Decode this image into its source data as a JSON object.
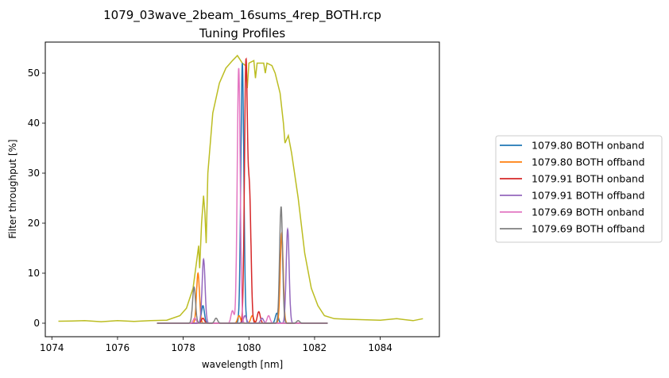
{
  "chart_data": {
    "type": "line",
    "title": "1079_03wave_2beam_16sums_4rep_BOTH.rcp",
    "subtitle": "Tuning Profiles",
    "xlabel": "wavelength [nm]",
    "ylabel": "Filter throughput [%]",
    "xlim": [
      1073.8,
      1085.8
    ],
    "ylim": [
      -2.7,
      56.2
    ],
    "xticks": [
      1074,
      1076,
      1078,
      1080,
      1082,
      1084
    ],
    "yticks": [
      0,
      10,
      20,
      30,
      40,
      50
    ],
    "grid": false,
    "legend_position": "right",
    "prefilter": {
      "color": "#bcbd22",
      "points": [
        [
          1074.2,
          0.4
        ],
        [
          1074.6,
          0.45
        ],
        [
          1075.0,
          0.5
        ],
        [
          1075.5,
          0.3
        ],
        [
          1076.0,
          0.5
        ],
        [
          1076.5,
          0.35
        ],
        [
          1077.0,
          0.5
        ],
        [
          1077.5,
          0.6
        ],
        [
          1077.9,
          1.5
        ],
        [
          1078.1,
          3
        ],
        [
          1078.3,
          7
        ],
        [
          1078.42,
          13
        ],
        [
          1078.47,
          15.5
        ],
        [
          1078.5,
          11
        ],
        [
          1078.56,
          20
        ],
        [
          1078.62,
          25.5
        ],
        [
          1078.66,
          22
        ],
        [
          1078.7,
          16
        ],
        [
          1078.75,
          30
        ],
        [
          1078.9,
          42
        ],
        [
          1079.1,
          48
        ],
        [
          1079.3,
          51
        ],
        [
          1079.5,
          52.5
        ],
        [
          1079.65,
          53.5
        ],
        [
          1079.7,
          53
        ],
        [
          1079.8,
          52
        ],
        [
          1079.9,
          51.5
        ],
        [
          1079.95,
          47
        ],
        [
          1080.0,
          52
        ],
        [
          1080.15,
          52.5
        ],
        [
          1080.2,
          49
        ],
        [
          1080.25,
          52
        ],
        [
          1080.45,
          52
        ],
        [
          1080.5,
          50
        ],
        [
          1080.55,
          52
        ],
        [
          1080.7,
          51.5
        ],
        [
          1080.8,
          50
        ],
        [
          1080.95,
          46
        ],
        [
          1081.05,
          40
        ],
        [
          1081.1,
          36
        ],
        [
          1081.2,
          37.5
        ],
        [
          1081.3,
          34
        ],
        [
          1081.5,
          25
        ],
        [
          1081.7,
          14
        ],
        [
          1081.9,
          7
        ],
        [
          1082.1,
          3.5
        ],
        [
          1082.3,
          1.5
        ],
        [
          1082.6,
          0.9
        ],
        [
          1083.0,
          0.8
        ],
        [
          1083.5,
          0.7
        ],
        [
          1084.0,
          0.6
        ],
        [
          1084.5,
          0.9
        ],
        [
          1085.0,
          0.5
        ],
        [
          1085.3,
          0.9
        ]
      ]
    },
    "series": [
      {
        "name": "1079.80 BOTH onband",
        "color": "#1f77b4",
        "peaks": [
          [
            1079.8,
            52.0
          ],
          [
            1078.6,
            3.5
          ],
          [
            1080.85,
            2.0
          ]
        ]
      },
      {
        "name": "1079.80 BOTH offband",
        "color": "#ff7f0e",
        "peaks": [
          [
            1078.45,
            10.0
          ],
          [
            1081.0,
            18.0
          ],
          [
            1079.7,
            1.5
          ],
          [
            1080.1,
            1.5
          ]
        ]
      },
      {
        "name": "1079.91 BOTH onband",
        "color": "#d62728",
        "peaks": [
          [
            1079.91,
            51.5
          ],
          [
            1080.02,
            25.0
          ],
          [
            1080.3,
            2.3
          ],
          [
            1078.6,
            1.0
          ]
        ]
      },
      {
        "name": "1079.91 BOTH offband",
        "color": "#9467bd",
        "peaks": [
          [
            1078.62,
            12.8
          ],
          [
            1081.18,
            18.8
          ],
          [
            1079.88,
            1.5
          ],
          [
            1080.4,
            1.0
          ]
        ]
      },
      {
        "name": "1079.69 BOTH onband",
        "color": "#e377c2",
        "peaks": [
          [
            1079.69,
            51.0
          ],
          [
            1079.5,
            2.5
          ],
          [
            1080.6,
            1.5
          ],
          [
            1078.35,
            1.0
          ]
        ]
      },
      {
        "name": "1079.69 BOTH offband",
        "color": "#7f7f7f",
        "peaks": [
          [
            1078.33,
            7.2
          ],
          [
            1080.98,
            23.3
          ],
          [
            1079.0,
            1.0
          ],
          [
            1081.5,
            0.5
          ]
        ]
      }
    ],
    "series_x_range": [
      1077.2,
      1082.4
    ]
  }
}
